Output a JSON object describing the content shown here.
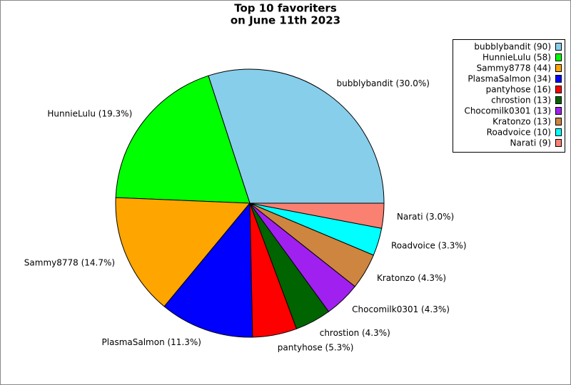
{
  "chart_data": {
    "type": "pie",
    "title": [
      "Top 10 favoriters",
      "on June 11th 2023"
    ],
    "categories": [
      "bubblybandit",
      "HunnieLulu",
      "Sammy8778",
      "PlasmaSalmon",
      "pantyhose",
      "chrostion",
      "Chocomilk0301",
      "Kratonzo",
      "Roadvoice",
      "Narati"
    ],
    "values": [
      90,
      58,
      44,
      34,
      16,
      13,
      13,
      13,
      10,
      9
    ],
    "labels": [
      "bubblybandit (90)",
      "HunnieLulu (58)",
      "Sammy8778 (44)",
      "PlasmaSalmon (34)",
      "pantyhose (16)",
      "chrostion (13)",
      "Chocomilk0301 (13)",
      "Kratonzo (13)",
      "Roadvoice (10)",
      "Narati (9)"
    ],
    "value_labels": [
      "bubblybandit (30.0%)",
      "HunnieLulu (19.3%)",
      "Sammy8778 (14.7%)",
      "PlasmaSalmon (11.3%)",
      "pantyhose (5.3%)",
      "chrostion (4.3%)",
      "Chocomilk0301 (4.3%)",
      "Kratonzo (4.3%)",
      "Roadvoice (3.3%)",
      "Narati (3.0%)"
    ],
    "colors": [
      "#87ceeb",
      "#00ff00",
      "#ffa500",
      "#0000ff",
      "#ff0000",
      "#006400",
      "#a020f0",
      "#cd853f",
      "#00ffff",
      "#fa8072"
    ],
    "legend": "upper right"
  }
}
